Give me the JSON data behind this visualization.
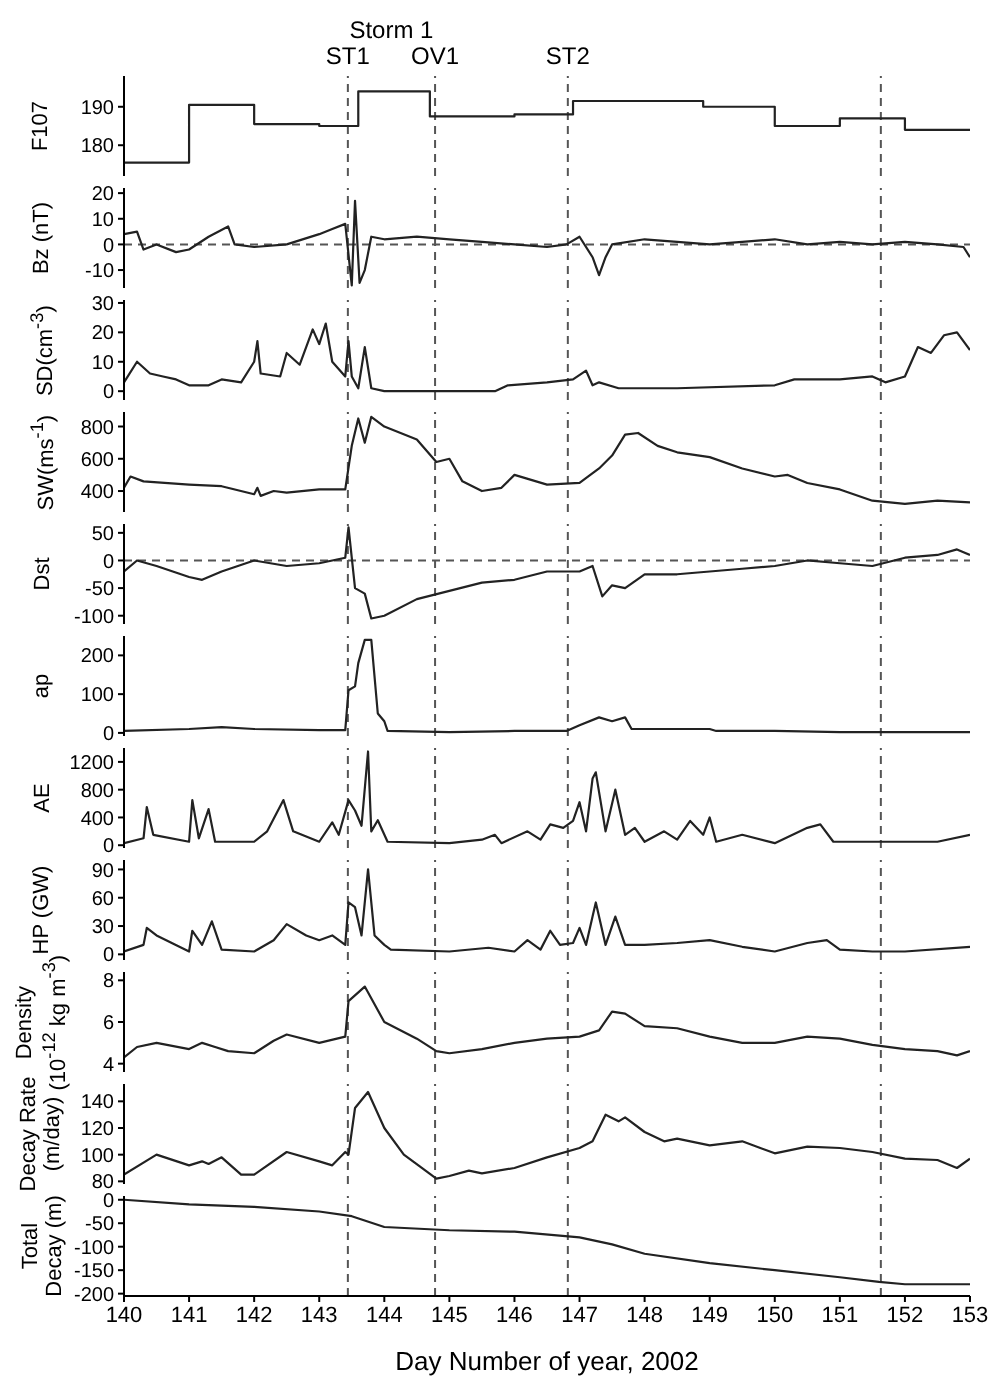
{
  "chart_data": [
    {
      "type": "step",
      "ylabel": "F107",
      "annotations": [
        "Storm 1"
      ],
      "color": "#222222",
      "xlim": [
        140,
        153
      ],
      "xticks": [
        140,
        141,
        142,
        143,
        144,
        145,
        146,
        147,
        148,
        149,
        150,
        151,
        152,
        153
      ],
      "ylim": [
        172,
        198
      ],
      "yticks": [
        180,
        190
      ],
      "tick_labels": "y",
      "x": [
        140,
        141,
        142,
        143,
        143.6,
        144.7,
        146,
        146.9,
        148.9,
        150,
        151,
        152,
        153
      ],
      "values": [
        175.5,
        190.5,
        185.5,
        185,
        194,
        187.5,
        188,
        191.5,
        190,
        185,
        187,
        184,
        184
      ],
      "ref_lines": [
        {
          "axis": "x",
          "value": 143.44,
          "label": "ST1",
          "color": "#555555",
          "line_style": "dashed"
        },
        {
          "axis": "x",
          "value": 144.78,
          "label": "OV1",
          "color": "#555555",
          "line_style": "dashed"
        },
        {
          "axis": "x",
          "value": 146.82,
          "label": "ST2",
          "color": "#555555",
          "line_style": "dashed"
        },
        {
          "axis": "x",
          "value": 151.63,
          "color": "#555555",
          "line_style": "dashed"
        }
      ]
    },
    {
      "type": "line",
      "ylabel": "Bz (nT)",
      "color": "#222222",
      "xlim": [
        140,
        153
      ],
      "xticks": [
        140,
        141,
        142,
        143,
        144,
        145,
        146,
        147,
        148,
        149,
        150,
        151,
        152,
        153
      ],
      "ylim": [
        -17,
        22
      ],
      "yticks": [
        -10,
        0,
        10,
        20
      ],
      "tick_labels": "y",
      "x": [
        140,
        140.2,
        140.3,
        140.5,
        140.8,
        141,
        141.3,
        141.6,
        141.7,
        142,
        142.5,
        143,
        143.2,
        143.4,
        143.5,
        143.55,
        143.62,
        143.7,
        143.8,
        144,
        144.5,
        145,
        145.5,
        146,
        146.5,
        146.8,
        147,
        147.2,
        147.3,
        147.4,
        147.5,
        148,
        148.5,
        149,
        149.5,
        150,
        150.5,
        151,
        151.5,
        152,
        152.5,
        152.9,
        153
      ],
      "values": [
        4,
        5,
        -2,
        0,
        -3,
        -2,
        3,
        7,
        0,
        -1,
        0,
        4,
        6,
        8,
        -16,
        17,
        -15,
        -10,
        3,
        2,
        3,
        2,
        1,
        0,
        -1,
        0,
        3,
        -5,
        -12,
        -5,
        0,
        2,
        1,
        0,
        1,
        2,
        0,
        1,
        0,
        1,
        0,
        -1,
        -5
      ],
      "ref_lines": [
        {
          "axis": "y",
          "value": 0,
          "color": "#555555",
          "line_style": "dashed"
        },
        {
          "axis": "x",
          "value": 143.44,
          "color": "#555555",
          "line_style": "dashed"
        },
        {
          "axis": "x",
          "value": 144.78,
          "color": "#555555",
          "line_style": "dashed"
        },
        {
          "axis": "x",
          "value": 146.82,
          "color": "#555555",
          "line_style": "dashed"
        },
        {
          "axis": "x",
          "value": 151.63,
          "color": "#555555",
          "line_style": "dashed"
        }
      ]
    },
    {
      "type": "line",
      "ylabel": "SD(cm$^{-3}$)",
      "color": "#222222",
      "xlim": [
        140,
        153
      ],
      "xticks": [
        140,
        141,
        142,
        143,
        144,
        145,
        146,
        147,
        148,
        149,
        150,
        151,
        152,
        153
      ],
      "ylim": [
        -3,
        31
      ],
      "yticks": [
        0,
        10,
        20,
        30
      ],
      "tick_labels": "y",
      "x": [
        140,
        140.2,
        140.4,
        140.6,
        140.8,
        141,
        141.3,
        141.5,
        141.8,
        142,
        142.05,
        142.1,
        142.4,
        142.5,
        142.7,
        142.9,
        143,
        143.1,
        143.2,
        143.4,
        143.45,
        143.5,
        143.6,
        143.7,
        143.8,
        144,
        145,
        145.7,
        145.9,
        146.5,
        146.9,
        147.1,
        147.2,
        147.3,
        147.6,
        148.5,
        150,
        150.3,
        150.6,
        151,
        151.5,
        151.7,
        152,
        152.2,
        152.4,
        152.6,
        152.8,
        153
      ],
      "values": [
        3,
        10,
        6,
        5,
        4,
        2,
        2,
        4,
        3,
        10,
        17,
        6,
        5,
        13,
        9,
        21,
        16,
        23,
        10,
        5,
        17,
        5,
        1,
        15,
        1,
        0,
        0,
        0,
        2,
        3,
        4,
        7,
        2,
        3,
        1,
        1,
        2,
        4,
        4,
        4,
        5,
        3,
        5,
        15,
        13,
        19,
        20,
        14
      ],
      "ref_lines": [
        {
          "axis": "x",
          "value": 143.44,
          "color": "#555555",
          "line_style": "dashed"
        },
        {
          "axis": "x",
          "value": 144.78,
          "color": "#555555",
          "line_style": "dashed"
        },
        {
          "axis": "x",
          "value": 146.82,
          "color": "#555555",
          "line_style": "dashed"
        },
        {
          "axis": "x",
          "value": 151.63,
          "color": "#555555",
          "line_style": "dashed"
        }
      ]
    },
    {
      "type": "line",
      "ylabel": "SW(ms$^{-1}$)",
      "color": "#222222",
      "xlim": [
        140,
        153
      ],
      "xticks": [
        140,
        141,
        142,
        143,
        144,
        145,
        146,
        147,
        148,
        149,
        150,
        151,
        152,
        153
      ],
      "ylim": [
        270,
        890
      ],
      "yticks": [
        400,
        600,
        800
      ],
      "tick_labels": "y",
      "x": [
        140,
        140.1,
        140.3,
        141,
        141.5,
        142,
        142.05,
        142.1,
        142.3,
        142.5,
        143,
        143.4,
        143.5,
        143.6,
        143.7,
        143.8,
        144,
        144.5,
        144.8,
        145,
        145.2,
        145.5,
        145.8,
        146,
        146.5,
        147,
        147.3,
        147.5,
        147.7,
        147.9,
        148.2,
        148.5,
        149,
        149.5,
        150,
        150.2,
        150.5,
        151,
        151.5,
        152,
        152.5,
        153
      ],
      "values": [
        420,
        490,
        460,
        440,
        430,
        380,
        420,
        370,
        400,
        390,
        410,
        410,
        680,
        850,
        700,
        860,
        800,
        720,
        580,
        600,
        460,
        400,
        420,
        500,
        440,
        450,
        540,
        620,
        750,
        760,
        680,
        640,
        610,
        540,
        490,
        500,
        450,
        410,
        340,
        320,
        340,
        330
      ],
      "ref_lines": [
        {
          "axis": "x",
          "value": 143.44,
          "color": "#555555",
          "line_style": "dashed"
        },
        {
          "axis": "x",
          "value": 144.78,
          "color": "#555555",
          "line_style": "dashed"
        },
        {
          "axis": "x",
          "value": 146.82,
          "color": "#555555",
          "line_style": "dashed"
        },
        {
          "axis": "x",
          "value": 151.63,
          "color": "#555555",
          "line_style": "dashed"
        }
      ]
    },
    {
      "type": "line",
      "ylabel": "Dst",
      "color": "#222222",
      "xlim": [
        140,
        153
      ],
      "xticks": [
        140,
        141,
        142,
        143,
        144,
        145,
        146,
        147,
        148,
        149,
        150,
        151,
        152,
        153
      ],
      "ylim": [
        -115,
        66
      ],
      "yticks": [
        -100,
        -50,
        0,
        50
      ],
      "tick_labels": "y",
      "x": [
        140,
        140.2,
        140.5,
        141,
        141.2,
        141.5,
        142,
        142.5,
        143,
        143.2,
        143.4,
        143.45,
        143.55,
        143.7,
        143.8,
        144,
        144.5,
        145,
        145.5,
        146,
        146.5,
        147,
        147.2,
        147.35,
        147.5,
        147.7,
        148,
        148.5,
        149,
        149.5,
        150,
        150.5,
        151,
        151.5,
        152,
        152.5,
        152.8,
        153
      ],
      "values": [
        -20,
        0,
        -10,
        -30,
        -35,
        -20,
        0,
        -10,
        -5,
        0,
        5,
        60,
        -50,
        -60,
        -105,
        -100,
        -70,
        -55,
        -40,
        -35,
        -20,
        -20,
        -10,
        -65,
        -45,
        -50,
        -25,
        -25,
        -20,
        -15,
        -10,
        0,
        -5,
        -10,
        5,
        10,
        20,
        10
      ],
      "ref_lines": [
        {
          "axis": "y",
          "value": 0,
          "color": "#555555",
          "line_style": "dashed"
        },
        {
          "axis": "x",
          "value": 143.44,
          "color": "#555555",
          "line_style": "dashed"
        },
        {
          "axis": "x",
          "value": 144.78,
          "color": "#555555",
          "line_style": "dashed"
        },
        {
          "axis": "x",
          "value": 146.82,
          "color": "#555555",
          "line_style": "dashed"
        },
        {
          "axis": "x",
          "value": 151.63,
          "color": "#555555",
          "line_style": "dashed"
        }
      ]
    },
    {
      "type": "line",
      "ylabel": "ap",
      "color": "#222222",
      "xlim": [
        140,
        153
      ],
      "xticks": [
        140,
        141,
        142,
        143,
        144,
        145,
        146,
        147,
        148,
        149,
        150,
        151,
        152,
        153
      ],
      "ylim": [
        -8,
        250
      ],
      "yticks": [
        0,
        100,
        200
      ],
      "tick_labels": "y",
      "x": [
        140,
        141,
        141.5,
        142,
        143,
        143.4,
        143.45,
        143.55,
        143.6,
        143.7,
        143.8,
        143.9,
        144,
        144.05,
        145,
        146,
        146.8,
        147,
        147.3,
        147.5,
        147.7,
        147.8,
        148,
        148.5,
        149,
        149.1,
        150,
        151,
        152,
        153
      ],
      "values": [
        5,
        10,
        15,
        10,
        7,
        7,
        110,
        120,
        180,
        240,
        240,
        50,
        30,
        5,
        2,
        5,
        5,
        20,
        40,
        30,
        40,
        10,
        10,
        10,
        10,
        5,
        5,
        2,
        2,
        2
      ],
      "ref_lines": [
        {
          "axis": "x",
          "value": 143.44,
          "color": "#555555",
          "line_style": "dashed"
        },
        {
          "axis": "x",
          "value": 144.78,
          "color": "#555555",
          "line_style": "dashed"
        },
        {
          "axis": "x",
          "value": 146.82,
          "color": "#555555",
          "line_style": "dashed"
        },
        {
          "axis": "x",
          "value": 151.63,
          "color": "#555555",
          "line_style": "dashed"
        }
      ]
    },
    {
      "type": "line",
      "ylabel": "AE",
      "color": "#222222",
      "xlim": [
        140,
        153
      ],
      "xticks": [
        140,
        141,
        142,
        143,
        144,
        145,
        146,
        147,
        148,
        149,
        150,
        151,
        152,
        153
      ],
      "ylim": [
        -40,
        1400
      ],
      "yticks": [
        0,
        400,
        800,
        1200
      ],
      "tick_labels": "y",
      "x": [
        140,
        140.3,
        140.35,
        140.45,
        141,
        141.05,
        141.15,
        141.3,
        141.4,
        142,
        142.2,
        142.45,
        142.6,
        143,
        143.2,
        143.3,
        143.45,
        143.55,
        143.65,
        143.75,
        143.8,
        143.9,
        144.05,
        145,
        145.5,
        145.7,
        145.8,
        146.2,
        146.4,
        146.55,
        146.75,
        146.9,
        147,
        147.1,
        147.2,
        147.25,
        147.4,
        147.55,
        147.7,
        147.85,
        148,
        148.3,
        148.5,
        148.7,
        148.9,
        149,
        149.1,
        149.5,
        150,
        150.5,
        150.7,
        150.9,
        151.5,
        152,
        152.5,
        153
      ],
      "values": [
        30,
        100,
        550,
        150,
        50,
        650,
        100,
        520,
        50,
        50,
        200,
        650,
        200,
        50,
        330,
        150,
        650,
        500,
        280,
        1350,
        200,
        360,
        50,
        30,
        80,
        150,
        30,
        200,
        80,
        300,
        250,
        350,
        620,
        200,
        960,
        1050,
        200,
        800,
        150,
        250,
        50,
        200,
        80,
        350,
        150,
        400,
        50,
        150,
        30,
        250,
        300,
        50,
        50,
        50,
        50,
        150
      ],
      "ref_lines": [
        {
          "axis": "x",
          "value": 143.44,
          "color": "#555555",
          "line_style": "dashed"
        },
        {
          "axis": "x",
          "value": 144.78,
          "color": "#555555",
          "line_style": "dashed"
        },
        {
          "axis": "x",
          "value": 146.82,
          "color": "#555555",
          "line_style": "dashed"
        },
        {
          "axis": "x",
          "value": 151.63,
          "color": "#555555",
          "line_style": "dashed"
        }
      ]
    },
    {
      "type": "line",
      "ylabel": "HP (GW)",
      "color": "#222222",
      "xlim": [
        140,
        153
      ],
      "xticks": [
        140,
        141,
        142,
        143,
        144,
        145,
        146,
        147,
        148,
        149,
        150,
        151,
        152,
        153
      ],
      "ylim": [
        -6,
        100
      ],
      "yticks": [
        0,
        30,
        60,
        90
      ],
      "tick_labels": "y",
      "x": [
        140,
        140.3,
        140.35,
        140.5,
        141,
        141.05,
        141.2,
        141.35,
        141.5,
        142,
        142.3,
        142.5,
        142.8,
        143,
        143.2,
        143.4,
        143.45,
        143.55,
        143.65,
        143.75,
        143.85,
        144,
        144.1,
        145,
        145.6,
        146,
        146.2,
        146.4,
        146.55,
        146.7,
        146.9,
        147,
        147.1,
        147.2,
        147.25,
        147.4,
        147.55,
        147.7,
        148,
        148.5,
        149,
        149.5,
        150,
        150.5,
        150.8,
        151,
        151.5,
        152,
        153
      ],
      "values": [
        3,
        10,
        28,
        20,
        3,
        25,
        10,
        35,
        5,
        3,
        15,
        32,
        20,
        15,
        20,
        10,
        55,
        50,
        20,
        90,
        20,
        10,
        5,
        3,
        7,
        3,
        15,
        5,
        25,
        10,
        12,
        28,
        10,
        40,
        55,
        10,
        40,
        10,
        10,
        12,
        15,
        8,
        3,
        12,
        15,
        5,
        3,
        3,
        8
      ],
      "ref_lines": [
        {
          "axis": "x",
          "value": 143.44,
          "color": "#555555",
          "line_style": "dashed"
        },
        {
          "axis": "x",
          "value": 144.78,
          "color": "#555555",
          "line_style": "dashed"
        },
        {
          "axis": "x",
          "value": 146.82,
          "color": "#555555",
          "line_style": "dashed"
        },
        {
          "axis": "x",
          "value": 151.63,
          "color": "#555555",
          "line_style": "dashed"
        }
      ]
    },
    {
      "type": "line",
      "ylabel": "Density\n(10$^{-12}$ kg m$^{-3}$)",
      "color": "#222222",
      "xlim": [
        140,
        153
      ],
      "xticks": [
        140,
        141,
        142,
        143,
        144,
        145,
        146,
        147,
        148,
        149,
        150,
        151,
        152,
        153
      ],
      "ylim": [
        3.6,
        8.4
      ],
      "yticks": [
        4,
        6,
        8
      ],
      "tick_labels": "y",
      "x": [
        140,
        140.2,
        140.5,
        141,
        141.2,
        141.4,
        141.6,
        142,
        142.3,
        142.5,
        143,
        143.4,
        143.45,
        143.7,
        144,
        144.5,
        144.8,
        145,
        145.5,
        146,
        146.5,
        147,
        147.3,
        147.5,
        147.7,
        148,
        148.5,
        149,
        149.5,
        150,
        150.5,
        151,
        151.5,
        152,
        152.5,
        152.8,
        153
      ],
      "values": [
        4.3,
        4.8,
        5.0,
        4.7,
        5.0,
        4.8,
        4.6,
        4.5,
        5.1,
        5.4,
        5.0,
        5.3,
        7.0,
        7.7,
        6.0,
        5.2,
        4.6,
        4.5,
        4.7,
        5.0,
        5.2,
        5.3,
        5.6,
        6.5,
        6.4,
        5.8,
        5.7,
        5.3,
        5.0,
        5.0,
        5.3,
        5.2,
        4.9,
        4.7,
        4.6,
        4.4,
        4.6
      ],
      "ref_lines": [
        {
          "axis": "x",
          "value": 143.44,
          "color": "#555555",
          "line_style": "dashed"
        },
        {
          "axis": "x",
          "value": 144.78,
          "color": "#555555",
          "line_style": "dashed"
        },
        {
          "axis": "x",
          "value": 146.82,
          "color": "#555555",
          "line_style": "dashed"
        },
        {
          "axis": "x",
          "value": 151.63,
          "color": "#555555",
          "line_style": "dashed"
        }
      ]
    },
    {
      "type": "line",
      "ylabel": "Decay Rate\n(m/day)",
      "color": "#222222",
      "xlim": [
        140,
        153
      ],
      "xticks": [
        140,
        141,
        142,
        143,
        144,
        145,
        146,
        147,
        148,
        149,
        150,
        151,
        152,
        153
      ],
      "ylim": [
        78,
        153
      ],
      "yticks": [
        80,
        100,
        120,
        140
      ],
      "tick_labels": "y",
      "x": [
        140,
        140.5,
        141,
        141.2,
        141.3,
        141.5,
        141.8,
        142,
        142.5,
        143,
        143.2,
        143.4,
        143.45,
        143.55,
        143.75,
        144,
        144.3,
        144.8,
        145,
        145.3,
        145.5,
        146,
        146.5,
        147,
        147.2,
        147.4,
        147.6,
        147.7,
        148,
        148.3,
        148.5,
        149,
        149.5,
        150,
        150.5,
        151,
        151.5,
        152,
        152.5,
        152.8,
        153
      ],
      "values": [
        85,
        100,
        92,
        95,
        93,
        98,
        85,
        85,
        102,
        95,
        92,
        102,
        100,
        135,
        147,
        120,
        100,
        82,
        84,
        88,
        86,
        90,
        98,
        105,
        110,
        130,
        125,
        128,
        117,
        110,
        112,
        107,
        110,
        101,
        106,
        105,
        102,
        97,
        96,
        90,
        97
      ],
      "ref_lines": [
        {
          "axis": "x",
          "value": 143.44,
          "color": "#555555",
          "line_style": "dashed"
        },
        {
          "axis": "x",
          "value": 144.78,
          "color": "#555555",
          "line_style": "dashed"
        },
        {
          "axis": "x",
          "value": 146.82,
          "color": "#555555",
          "line_style": "dashed"
        },
        {
          "axis": "x",
          "value": 151.63,
          "color": "#555555",
          "line_style": "dashed"
        }
      ]
    },
    {
      "type": "line",
      "ylabel": "Total\nDecay (m)",
      "xlabel": "Day Number of year, 2002",
      "color": "#222222",
      "xlim": [
        140,
        153
      ],
      "xticks": [
        140,
        141,
        142,
        143,
        144,
        145,
        146,
        147,
        148,
        149,
        150,
        151,
        152,
        153
      ],
      "ylim": [
        -205,
        8
      ],
      "yticks": [
        -200,
        -150,
        -100,
        -50,
        0
      ],
      "x": [
        140,
        141,
        142,
        143,
        143.5,
        144,
        145,
        146,
        147,
        147.5,
        148,
        149,
        150,
        151,
        151.6,
        152,
        153
      ],
      "values": [
        0,
        -10,
        -15,
        -25,
        -35,
        -58,
        -65,
        -68,
        -80,
        -95,
        -115,
        -135,
        -150,
        -165,
        -175,
        -180,
        -180
      ],
      "ref_lines": [
        {
          "axis": "x",
          "value": 143.44,
          "color": "#555555",
          "line_style": "dashed"
        },
        {
          "axis": "x",
          "value": 144.78,
          "color": "#555555",
          "line_style": "dashed"
        },
        {
          "axis": "x",
          "value": 146.82,
          "color": "#555555",
          "line_style": "dashed"
        },
        {
          "axis": "x",
          "value": 151.63,
          "color": "#555555",
          "line_style": "dashed"
        }
      ]
    }
  ]
}
